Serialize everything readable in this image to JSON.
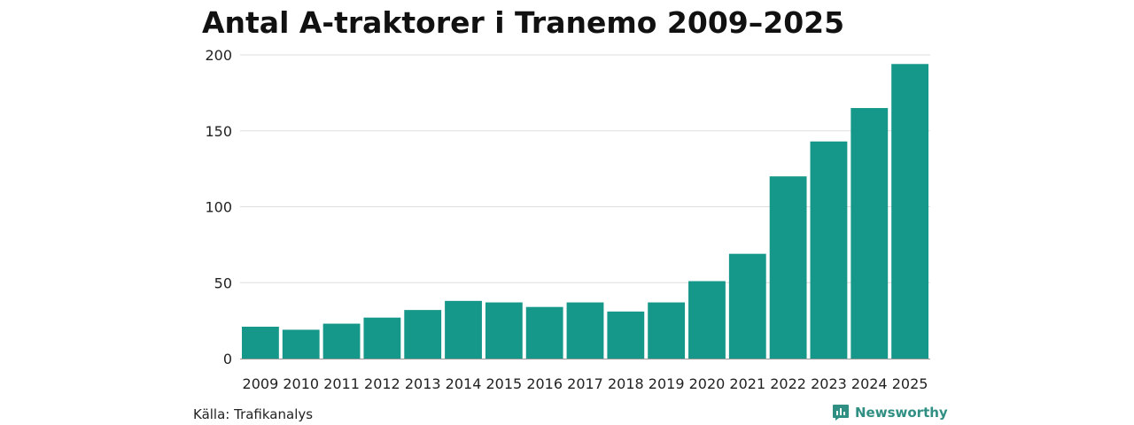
{
  "chart_data": {
    "type": "bar",
    "title": "Antal A-traktorer i Tranemo 2009–2025",
    "categories": [
      "2009",
      "2010",
      "2011",
      "2012",
      "2013",
      "2014",
      "2015",
      "2016",
      "2017",
      "2018",
      "2019",
      "2020",
      "2021",
      "2022",
      "2023",
      "2024",
      "2025"
    ],
    "values": [
      21,
      19,
      23,
      27,
      32,
      38,
      37,
      34,
      37,
      31,
      37,
      51,
      69,
      120,
      143,
      165,
      194
    ],
    "ylim": [
      0,
      200
    ],
    "yticks": [
      "0",
      "50",
      "100",
      "150",
      "200"
    ],
    "xlabel": "",
    "ylabel": "",
    "grid": true,
    "bar_color": "#159789",
    "grid_color": "#dddddd"
  },
  "footer": {
    "source": "Källa: Trafikanalys",
    "brand": "Newsworthy",
    "brand_icon": "newsworthy-logo-icon",
    "brand_color": "#2f8f83"
  }
}
